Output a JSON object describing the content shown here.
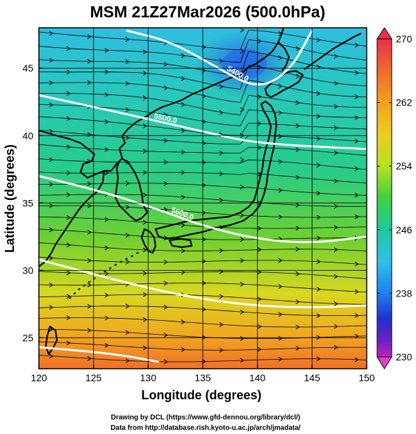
{
  "title": "MSM 21Z27Mar2026 (500.0hPa)",
  "xlabel": "Longitude (degrees)",
  "ylabel": "Latitude  (degrees)",
  "x_ticks": [
    "120",
    "125",
    "130",
    "135",
    "140",
    "145",
    "150"
  ],
  "y_ticks": [
    "25",
    "30",
    "35",
    "40",
    "45"
  ],
  "colorbar": {
    "min": 230,
    "max": 270,
    "labels": [
      "270",
      "262",
      "254",
      "246",
      "238",
      "230"
    ],
    "colors": [
      "#e8304a",
      "#f06a2a",
      "#f4a020",
      "#ecd020",
      "#b8e020",
      "#40d040",
      "#20c8a0",
      "#30c0e8",
      "#2080f0",
      "#2030d0",
      "#7020c0",
      "#c020c0"
    ]
  },
  "contours": [
    {
      "label": "5400.0",
      "lat_at_lon": [
        [
          128,
          47.8
        ],
        [
          132,
          47.0
        ],
        [
          136,
          45.2
        ],
        [
          140,
          43.4
        ],
        [
          143,
          44.8
        ],
        [
          145,
          47.8
        ]
      ]
    },
    {
      "label": "5500.0",
      "lat_at_lon": [
        [
          120,
          43.0
        ],
        [
          128,
          41.6
        ],
        [
          135,
          40.3
        ],
        [
          140,
          39.4
        ],
        [
          150,
          39.0
        ]
      ]
    },
    {
      "label": "5600.0",
      "lat_at_lon": [
        [
          120,
          37.0
        ],
        [
          126,
          35.8
        ],
        [
          131,
          34.5
        ],
        [
          135,
          33.3
        ],
        [
          140,
          32.3
        ],
        [
          145,
          32.0
        ],
        [
          150,
          32.5
        ]
      ]
    },
    {
      "label": "",
      "lat_at_lon": [
        [
          120,
          30.8
        ],
        [
          126,
          29.5
        ],
        [
          132,
          28.3
        ],
        [
          138,
          27.5
        ],
        [
          144,
          27.2
        ],
        [
          150,
          27.4
        ]
      ]
    },
    {
      "label": "",
      "lat_at_lon": [
        [
          120,
          24.3
        ],
        [
          127,
          23.8
        ],
        [
          131,
          23.2
        ]
      ]
    }
  ],
  "credits": [
    "Drawing by DCL (https://www.gfd-dennou.org/library/dcl/)",
    "Data from http://database.rish.kyoto-u.ac.jp/arch/jmadata/"
  ]
}
